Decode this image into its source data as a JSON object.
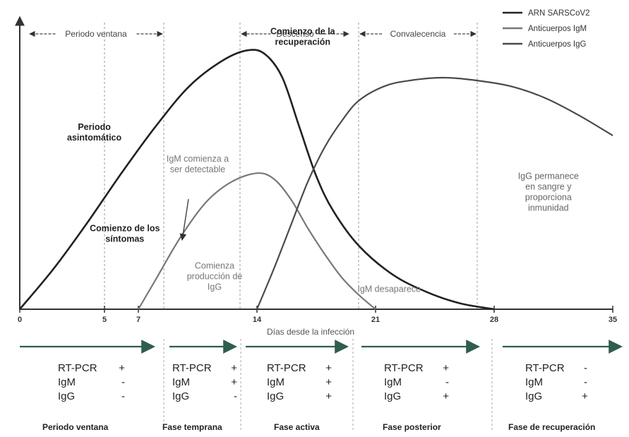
{
  "chart_data": {
    "type": "line",
    "title": "",
    "xlabel": "Días desde la infección",
    "ylabel": "",
    "xlim": [
      0,
      35
    ],
    "ticks": [
      0,
      5,
      7,
      14,
      21,
      28,
      35
    ],
    "grid_x": [
      5,
      8.5,
      13,
      20,
      27
    ],
    "legend_position": "top-right",
    "series": [
      {
        "name": "ARN SARSCoV2",
        "color": "#222222",
        "points": [
          [
            0,
            0
          ],
          [
            2,
            0.14
          ],
          [
            4,
            0.3
          ],
          [
            6,
            0.47
          ],
          [
            8,
            0.63
          ],
          [
            10,
            0.77
          ],
          [
            12,
            0.86
          ],
          [
            13.5,
            0.895
          ],
          [
            14.5,
            0.88
          ],
          [
            15.5,
            0.8
          ],
          [
            16.5,
            0.63
          ],
          [
            17.5,
            0.46
          ],
          [
            18.5,
            0.34
          ],
          [
            20,
            0.22
          ],
          [
            22,
            0.12
          ],
          [
            24,
            0.06
          ],
          [
            26,
            0.02
          ],
          [
            28,
            0
          ]
        ]
      },
      {
        "name": "Anticuerpos IgM",
        "color": "#777777",
        "points": [
          [
            7,
            0
          ],
          [
            8,
            0.1
          ],
          [
            9.5,
            0.25
          ],
          [
            11,
            0.37
          ],
          [
            12.5,
            0.44
          ],
          [
            14,
            0.47
          ],
          [
            15,
            0.45
          ],
          [
            16,
            0.38
          ],
          [
            17,
            0.28
          ],
          [
            18,
            0.19
          ],
          [
            19,
            0.11
          ],
          [
            20,
            0.05
          ],
          [
            21,
            0
          ]
        ]
      },
      {
        "name": "Anticuerpos IgG",
        "color": "#4a4a4a",
        "points": [
          [
            14,
            0
          ],
          [
            15,
            0.14
          ],
          [
            16,
            0.29
          ],
          [
            17,
            0.44
          ],
          [
            18,
            0.56
          ],
          [
            19,
            0.65
          ],
          [
            20,
            0.72
          ],
          [
            21.5,
            0.77
          ],
          [
            23,
            0.79
          ],
          [
            25,
            0.8
          ],
          [
            27,
            0.79
          ],
          [
            29,
            0.77
          ],
          [
            31,
            0.73
          ],
          [
            33,
            0.67
          ],
          [
            35,
            0.6
          ]
        ]
      }
    ],
    "phase_labels": [
      {
        "text": "Periodo ventana",
        "from": 0.5,
        "to": 8.5
      },
      {
        "text": "Descenso",
        "from": 13,
        "to": 19.5
      },
      {
        "text": "Convalecencia",
        "from": 20,
        "to": 27
      }
    ],
    "annotations": [
      {
        "text": "Periodo asintomático",
        "x": 4.4,
        "y": 0.62,
        "bold": true,
        "color": "#222222"
      },
      {
        "text": "Comienzo de los síntomas",
        "x": 6.2,
        "y": 0.27,
        "bold": true,
        "color": "#222222"
      },
      {
        "text": "IgM comienza a ser detectable",
        "x": 10.5,
        "y": 0.51,
        "bold": false,
        "color": "#777777"
      },
      {
        "text": "Comienzo de la recuperación",
        "x": 16.7,
        "y": 0.95,
        "bold": true,
        "color": "#222222"
      },
      {
        "text": "Comienza producción de IgG",
        "x": 11.5,
        "y": 0.14,
        "bold": false,
        "color": "#777777"
      },
      {
        "text": "IgM desaparece",
        "x": 21.8,
        "y": 0.06,
        "bold": false,
        "color": "#777777"
      },
      {
        "text": "IgG permanece en sangre y proporciona inmunidad",
        "x": 31.2,
        "y": 0.45,
        "bold": false,
        "color": "#666666"
      }
    ]
  },
  "stages": [
    {
      "name": "Periodo ventana",
      "rt_pcr": "+",
      "igm": "-",
      "igg": "-"
    },
    {
      "name": "Fase temprana",
      "rt_pcr": "+",
      "igm": "+",
      "igg": "-"
    },
    {
      "name": "Fase activa",
      "rt_pcr": "+",
      "igm": "+",
      "igg": "+"
    },
    {
      "name": "Fase posterior",
      "rt_pcr": "+",
      "igm": "-",
      "igg": "+"
    },
    {
      "name": "Fase de recuperación",
      "rt_pcr": "-",
      "igm": "-",
      "igg": "+"
    }
  ],
  "test_labels": {
    "rt_pcr": "RT-PCR",
    "igm": "IgM",
    "igg": "IgG"
  }
}
